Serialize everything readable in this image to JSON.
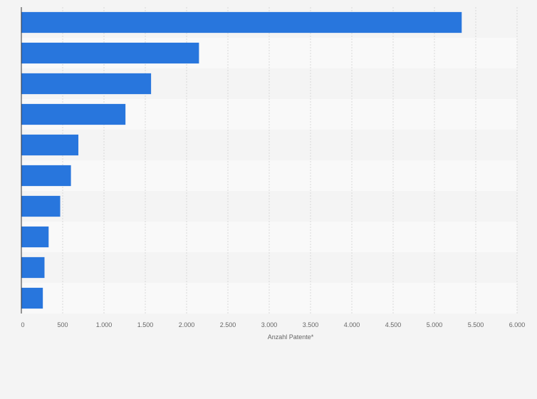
{
  "chart_data": {
    "type": "bar",
    "orientation": "horizontal",
    "categories": [
      "",
      "",
      "",
      "",
      "",
      "",
      "",
      "",
      "",
      ""
    ],
    "values": [
      5330,
      2150,
      1570,
      1260,
      690,
      600,
      470,
      330,
      280,
      260
    ],
    "xlabel": "Anzahl Patente*",
    "ylabel": "",
    "xlim": [
      0,
      6000
    ],
    "xticks": [
      0,
      500,
      1000,
      1500,
      2000,
      2500,
      3000,
      3500,
      4000,
      4500,
      5000,
      5500,
      6000
    ],
    "xtick_labels": [
      "0",
      "500",
      "1.000",
      "1.500",
      "2.000",
      "2.500",
      "3.000",
      "3.500",
      "4.000",
      "4.500",
      "5.000",
      "5.500",
      "6.000"
    ],
    "grid": true,
    "bar_color": "#2876dd",
    "band_colors": [
      "#f4f4f4",
      "#f9f9f9"
    ]
  }
}
